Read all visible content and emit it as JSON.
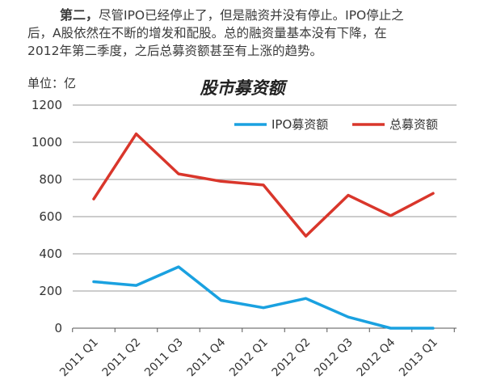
{
  "intro": {
    "lead": "第二，",
    "line1": "尽管IPO已经停止了，但是融资并没有停止。IPO停止之",
    "line2": "后，A股依然在不断的增发和配股。总的融资量基本没有下降，在",
    "line3": "2012年第二季度，之后总募资额甚至有上涨的趋势。"
  },
  "chart_data": {
    "type": "line",
    "title": "股市募资额",
    "unit_label": "单位：亿",
    "xlabel": "",
    "ylabel": "",
    "categories": [
      "2011 Q1",
      "2011 Q2",
      "2011 Q3",
      "2011 Q4",
      "2012 Q1",
      "2012 Q2",
      "2012 Q3",
      "2012 Q4",
      "2013 Q1"
    ],
    "ylim": [
      0,
      1200
    ],
    "yticks": [
      0,
      200,
      400,
      600,
      800,
      1000,
      1200
    ],
    "grid": "horizontal",
    "legend_position": "top-right",
    "series": [
      {
        "name": "IPO募资额",
        "color": "#1aa1e0",
        "values": [
          250,
          230,
          330,
          150,
          110,
          160,
          60,
          0,
          0
        ]
      },
      {
        "name": "总募资额",
        "color": "#d9362b",
        "values": [
          695,
          1045,
          830,
          790,
          770,
          495,
          715,
          605,
          725
        ]
      }
    ]
  }
}
